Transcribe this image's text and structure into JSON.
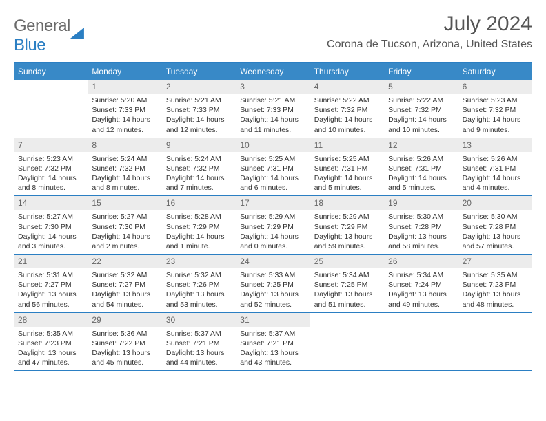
{
  "logo": {
    "text_a": "General",
    "text_b": "Blue"
  },
  "header": {
    "month_title": "July 2024",
    "location": "Corona de Tucson, Arizona, United States"
  },
  "colors": {
    "header_bar": "#3889c7",
    "accent_line": "#2b7fc3",
    "daynum_bg": "#ececec",
    "text_primary": "#333333",
    "text_muted": "#555555",
    "background": "#ffffff"
  },
  "typography": {
    "month_title_size": 30,
    "location_size": 16,
    "day_header_size": 12,
    "daynum_size": 12,
    "info_size": 10.5
  },
  "day_names": [
    "Sunday",
    "Monday",
    "Tuesday",
    "Wednesday",
    "Thursday",
    "Friday",
    "Saturday"
  ],
  "weeks": [
    [
      null,
      {
        "n": "1",
        "sr": "Sunrise: 5:20 AM",
        "ss": "Sunset: 7:33 PM",
        "d1": "Daylight: 14 hours",
        "d2": "and 12 minutes."
      },
      {
        "n": "2",
        "sr": "Sunrise: 5:21 AM",
        "ss": "Sunset: 7:33 PM",
        "d1": "Daylight: 14 hours",
        "d2": "and 12 minutes."
      },
      {
        "n": "3",
        "sr": "Sunrise: 5:21 AM",
        "ss": "Sunset: 7:33 PM",
        "d1": "Daylight: 14 hours",
        "d2": "and 11 minutes."
      },
      {
        "n": "4",
        "sr": "Sunrise: 5:22 AM",
        "ss": "Sunset: 7:32 PM",
        "d1": "Daylight: 14 hours",
        "d2": "and 10 minutes."
      },
      {
        "n": "5",
        "sr": "Sunrise: 5:22 AM",
        "ss": "Sunset: 7:32 PM",
        "d1": "Daylight: 14 hours",
        "d2": "and 10 minutes."
      },
      {
        "n": "6",
        "sr": "Sunrise: 5:23 AM",
        "ss": "Sunset: 7:32 PM",
        "d1": "Daylight: 14 hours",
        "d2": "and 9 minutes."
      }
    ],
    [
      {
        "n": "7",
        "sr": "Sunrise: 5:23 AM",
        "ss": "Sunset: 7:32 PM",
        "d1": "Daylight: 14 hours",
        "d2": "and 8 minutes."
      },
      {
        "n": "8",
        "sr": "Sunrise: 5:24 AM",
        "ss": "Sunset: 7:32 PM",
        "d1": "Daylight: 14 hours",
        "d2": "and 8 minutes."
      },
      {
        "n": "9",
        "sr": "Sunrise: 5:24 AM",
        "ss": "Sunset: 7:32 PM",
        "d1": "Daylight: 14 hours",
        "d2": "and 7 minutes."
      },
      {
        "n": "10",
        "sr": "Sunrise: 5:25 AM",
        "ss": "Sunset: 7:31 PM",
        "d1": "Daylight: 14 hours",
        "d2": "and 6 minutes."
      },
      {
        "n": "11",
        "sr": "Sunrise: 5:25 AM",
        "ss": "Sunset: 7:31 PM",
        "d1": "Daylight: 14 hours",
        "d2": "and 5 minutes."
      },
      {
        "n": "12",
        "sr": "Sunrise: 5:26 AM",
        "ss": "Sunset: 7:31 PM",
        "d1": "Daylight: 14 hours",
        "d2": "and 5 minutes."
      },
      {
        "n": "13",
        "sr": "Sunrise: 5:26 AM",
        "ss": "Sunset: 7:31 PM",
        "d1": "Daylight: 14 hours",
        "d2": "and 4 minutes."
      }
    ],
    [
      {
        "n": "14",
        "sr": "Sunrise: 5:27 AM",
        "ss": "Sunset: 7:30 PM",
        "d1": "Daylight: 14 hours",
        "d2": "and 3 minutes."
      },
      {
        "n": "15",
        "sr": "Sunrise: 5:27 AM",
        "ss": "Sunset: 7:30 PM",
        "d1": "Daylight: 14 hours",
        "d2": "and 2 minutes."
      },
      {
        "n": "16",
        "sr": "Sunrise: 5:28 AM",
        "ss": "Sunset: 7:29 PM",
        "d1": "Daylight: 14 hours",
        "d2": "and 1 minute."
      },
      {
        "n": "17",
        "sr": "Sunrise: 5:29 AM",
        "ss": "Sunset: 7:29 PM",
        "d1": "Daylight: 14 hours",
        "d2": "and 0 minutes."
      },
      {
        "n": "18",
        "sr": "Sunrise: 5:29 AM",
        "ss": "Sunset: 7:29 PM",
        "d1": "Daylight: 13 hours",
        "d2": "and 59 minutes."
      },
      {
        "n": "19",
        "sr": "Sunrise: 5:30 AM",
        "ss": "Sunset: 7:28 PM",
        "d1": "Daylight: 13 hours",
        "d2": "and 58 minutes."
      },
      {
        "n": "20",
        "sr": "Sunrise: 5:30 AM",
        "ss": "Sunset: 7:28 PM",
        "d1": "Daylight: 13 hours",
        "d2": "and 57 minutes."
      }
    ],
    [
      {
        "n": "21",
        "sr": "Sunrise: 5:31 AM",
        "ss": "Sunset: 7:27 PM",
        "d1": "Daylight: 13 hours",
        "d2": "and 56 minutes."
      },
      {
        "n": "22",
        "sr": "Sunrise: 5:32 AM",
        "ss": "Sunset: 7:27 PM",
        "d1": "Daylight: 13 hours",
        "d2": "and 54 minutes."
      },
      {
        "n": "23",
        "sr": "Sunrise: 5:32 AM",
        "ss": "Sunset: 7:26 PM",
        "d1": "Daylight: 13 hours",
        "d2": "and 53 minutes."
      },
      {
        "n": "24",
        "sr": "Sunrise: 5:33 AM",
        "ss": "Sunset: 7:25 PM",
        "d1": "Daylight: 13 hours",
        "d2": "and 52 minutes."
      },
      {
        "n": "25",
        "sr": "Sunrise: 5:34 AM",
        "ss": "Sunset: 7:25 PM",
        "d1": "Daylight: 13 hours",
        "d2": "and 51 minutes."
      },
      {
        "n": "26",
        "sr": "Sunrise: 5:34 AM",
        "ss": "Sunset: 7:24 PM",
        "d1": "Daylight: 13 hours",
        "d2": "and 49 minutes."
      },
      {
        "n": "27",
        "sr": "Sunrise: 5:35 AM",
        "ss": "Sunset: 7:23 PM",
        "d1": "Daylight: 13 hours",
        "d2": "and 48 minutes."
      }
    ],
    [
      {
        "n": "28",
        "sr": "Sunrise: 5:35 AM",
        "ss": "Sunset: 7:23 PM",
        "d1": "Daylight: 13 hours",
        "d2": "and 47 minutes."
      },
      {
        "n": "29",
        "sr": "Sunrise: 5:36 AM",
        "ss": "Sunset: 7:22 PM",
        "d1": "Daylight: 13 hours",
        "d2": "and 45 minutes."
      },
      {
        "n": "30",
        "sr": "Sunrise: 5:37 AM",
        "ss": "Sunset: 7:21 PM",
        "d1": "Daylight: 13 hours",
        "d2": "and 44 minutes."
      },
      {
        "n": "31",
        "sr": "Sunrise: 5:37 AM",
        "ss": "Sunset: 7:21 PM",
        "d1": "Daylight: 13 hours",
        "d2": "and 43 minutes."
      },
      null,
      null,
      null
    ]
  ]
}
